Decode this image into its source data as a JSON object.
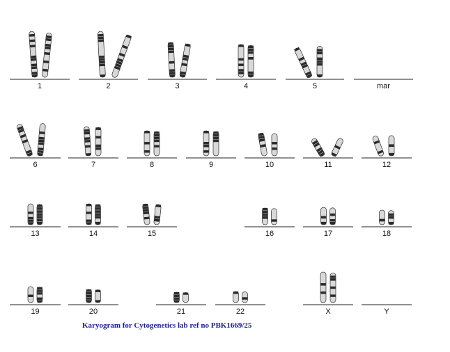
{
  "colors": {
    "caption": "#1a1aa6",
    "label": "#111111",
    "baseline": "#222222",
    "chromosome_light": "#d9d9d9",
    "chromosome_dark": "#2b2b2b"
  },
  "karyogram": {
    "caption": "Karyogram for Cytogenetics lab ref no PBK1669/25",
    "groups": [
      {
        "label": "1"
      },
      {
        "label": "2"
      },
      {
        "label": "3"
      },
      {
        "label": "4"
      },
      {
        "label": "5"
      },
      {
        "label": "mar"
      },
      {
        "label": "6"
      },
      {
        "label": "7"
      },
      {
        "label": "8"
      },
      {
        "label": "9"
      },
      {
        "label": "10"
      },
      {
        "label": "11"
      },
      {
        "label": "12"
      },
      {
        "label": "13"
      },
      {
        "label": "14"
      },
      {
        "label": "15"
      },
      {
        "label": "16"
      },
      {
        "label": "17"
      },
      {
        "label": "18"
      },
      {
        "label": "19"
      },
      {
        "label": "20"
      },
      {
        "label": "21"
      },
      {
        "label": "22"
      },
      {
        "label": "X"
      },
      {
        "label": "Y"
      }
    ]
  }
}
